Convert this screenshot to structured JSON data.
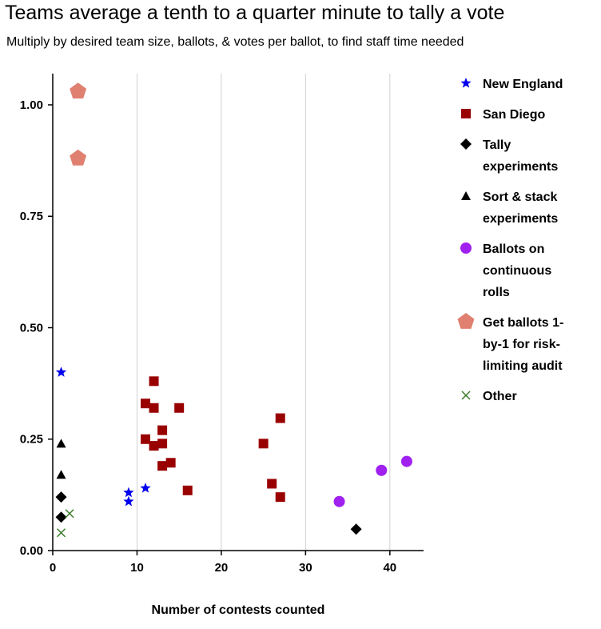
{
  "chart_data": {
    "type": "scatter",
    "title": "Teams average a tenth to a quarter minute to tally a vote",
    "subtitle": "Multiply by desired team size, ballots, & votes per ballot, to find staff time needed",
    "xlabel": "Number of contests counted",
    "ylabel": "",
    "xlim": [
      0,
      44
    ],
    "ylim": [
      0,
      1.07
    ],
    "xticks": [
      "0",
      "10",
      "20",
      "30",
      "40"
    ],
    "yticks": [
      "0.00",
      "0.25",
      "0.50",
      "0.75",
      "1.00"
    ],
    "grid": "vertical",
    "legend_position": "right",
    "series": [
      {
        "name": "New England",
        "marker": "star",
        "color": "#0000ee",
        "points": [
          [
            1,
            0.4
          ],
          [
            9,
            0.13
          ],
          [
            9,
            0.11
          ],
          [
            11,
            0.14
          ]
        ]
      },
      {
        "name": "San Diego",
        "marker": "square",
        "color": "#990000",
        "points": [
          [
            11,
            0.33
          ],
          [
            11,
            0.25
          ],
          [
            12,
            0.38
          ],
          [
            12,
            0.32
          ],
          [
            12,
            0.235
          ],
          [
            13,
            0.27
          ],
          [
            13,
            0.24
          ],
          [
            13,
            0.19
          ],
          [
            14,
            0.197
          ],
          [
            15,
            0.32
          ],
          [
            16,
            0.135
          ],
          [
            25,
            0.24
          ],
          [
            26,
            0.15
          ],
          [
            27,
            0.297
          ],
          [
            27,
            0.12
          ]
        ]
      },
      {
        "name": "Tally experiments",
        "marker": "diamond",
        "color": "#000000",
        "points": [
          [
            1,
            0.12
          ],
          [
            1,
            0.075
          ],
          [
            36,
            0.048
          ]
        ]
      },
      {
        "name": "Sort & stack experiments",
        "marker": "triangle",
        "color": "#000000",
        "points": [
          [
            1,
            0.24
          ],
          [
            1,
            0.17
          ]
        ]
      },
      {
        "name": "Ballots on continuous rolls",
        "marker": "circle",
        "color": "#a020f0",
        "points": [
          [
            34,
            0.11
          ],
          [
            39,
            0.18
          ],
          [
            42,
            0.2
          ]
        ]
      },
      {
        "name": "Get ballots 1-by-1 for risk-limiting audit",
        "marker": "pentagon",
        "color": "#e08070",
        "points": [
          [
            3,
            1.03
          ],
          [
            3,
            0.88
          ]
        ]
      },
      {
        "name": "Other",
        "marker": "x",
        "color": "#3a7a2a",
        "points": [
          [
            1,
            0.04
          ],
          [
            2,
            0.083
          ]
        ]
      }
    ],
    "legend_lines": [
      [
        "New England"
      ],
      [
        "San Diego"
      ],
      [
        "Tally",
        "experiments"
      ],
      [
        "Sort & stack",
        "experiments"
      ],
      [
        "Ballots on",
        "continuous",
        "rolls"
      ],
      [
        "Get ballots 1-",
        "by-1 for risk-",
        "limiting audit"
      ],
      [
        "Other"
      ]
    ]
  }
}
